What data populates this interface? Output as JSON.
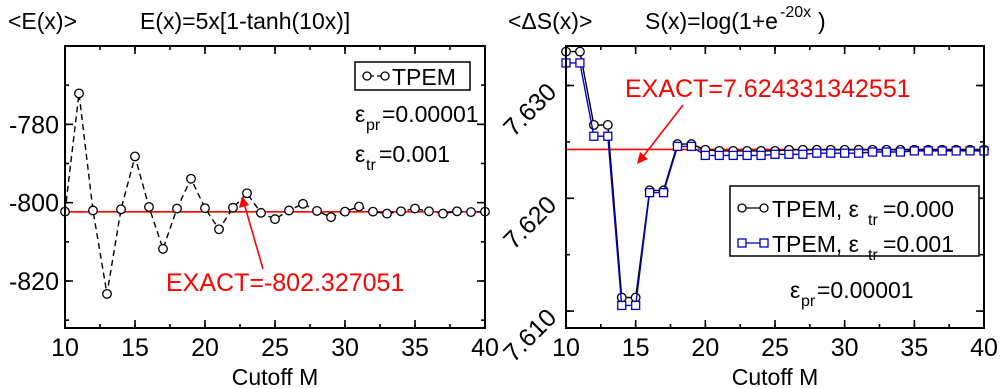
{
  "chart_data": [
    {
      "type": "line",
      "ylabel": "<E(x)>",
      "title": "E(x)=5x[1-tanh(10x)]",
      "xlabel": "Cutoff M",
      "xlim": [
        10,
        40
      ],
      "ylim": [
        -832,
        -760
      ],
      "xticks": [
        10,
        15,
        20,
        25,
        30,
        35,
        40
      ],
      "yticks": [
        -780,
        -800,
        -820
      ],
      "xtick_labels": [
        "10",
        "15",
        "20",
        "25",
        "30",
        "35",
        "40"
      ],
      "ytick_labels": [
        "-780",
        "-800",
        "-820"
      ],
      "legend_placement": "top-right",
      "series": [
        {
          "name": "TPEM",
          "marker": "circle",
          "line": "dashed",
          "color": "#000000",
          "x": [
            10,
            11,
            12,
            13,
            14,
            15,
            16,
            17,
            18,
            19,
            20,
            21,
            22,
            23,
            24,
            25,
            26,
            27,
            28,
            29,
            30,
            31,
            32,
            33,
            34,
            35,
            36,
            37,
            38,
            39,
            40
          ],
          "y": [
            -802.3,
            -772.1,
            -802.0,
            -823.3,
            -801.7,
            -788.2,
            -801.1,
            -811.8,
            -801.5,
            -793.9,
            -801.4,
            -806.8,
            -801.3,
            -797.6,
            -802.6,
            -804.2,
            -802.0,
            -800.3,
            -802.1,
            -803.7,
            -802.3,
            -801.0,
            -802.3,
            -802.8,
            -802.2,
            -801.5,
            -802.2,
            -802.8,
            -802.2,
            -802.4,
            -802.3
          ]
        }
      ],
      "reference_line": {
        "y": -802.327051,
        "color": "#ff0000"
      },
      "annotations": [
        "ε",
        "pr",
        "=0.00001",
        "ε",
        "tr",
        "=0.001",
        "EXACT=-802.327051"
      ]
    },
    {
      "type": "line",
      "ylabel": "<ΔS(x)>",
      "title_main": "S(x)=log(1+e",
      "title_sup": "-20x",
      "title_close": ")",
      "xlabel": "Cutoff M",
      "xlim": [
        10,
        40
      ],
      "ylim": [
        7.6085,
        7.6335
      ],
      "xticks": [
        10,
        15,
        20,
        25,
        30,
        35,
        40
      ],
      "yticks": [
        7.61,
        7.62,
        7.63
      ],
      "xtick_labels": [
        "10",
        "15",
        "20",
        "25",
        "30",
        "35",
        "40"
      ],
      "ytick_labels": [
        "7.610",
        "7.620",
        "7.630"
      ],
      "legend_placement": "center-right",
      "series": [
        {
          "name_main": "TPEM, ε",
          "name_sub": "tr",
          "name_tail": "=0.000",
          "marker": "circle",
          "line": "solid",
          "color": "#000000",
          "x": [
            10,
            11,
            12,
            13,
            14,
            15,
            16,
            17,
            18,
            19,
            20,
            21,
            22,
            23,
            24,
            25,
            26,
            27,
            28,
            29,
            30,
            31,
            32,
            33,
            34,
            35,
            36,
            37,
            38,
            39,
            40
          ],
          "y": [
            7.633,
            7.633,
            7.6265,
            7.6265,
            7.6112,
            7.6112,
            7.6207,
            7.6207,
            7.6248,
            7.6248,
            7.6243,
            7.6242,
            7.6242,
            7.6242,
            7.6242,
            7.6242,
            7.6243,
            7.6243,
            7.6243,
            7.6243,
            7.6243,
            7.6243,
            7.6243,
            7.6243,
            7.6243,
            7.6243,
            7.6243,
            7.6243,
            7.6243,
            7.6243,
            7.6243
          ]
        },
        {
          "name_main": "TPEM, ε",
          "name_sub": "tr",
          "name_tail": "=0.001",
          "marker": "square",
          "line": "solid",
          "color": "#0000cc",
          "x": [
            10,
            11,
            12,
            13,
            14,
            15,
            16,
            17,
            18,
            19,
            20,
            21,
            22,
            23,
            24,
            25,
            26,
            27,
            28,
            29,
            30,
            31,
            32,
            33,
            34,
            35,
            36,
            37,
            38,
            39,
            40
          ],
          "y": [
            7.632,
            7.632,
            7.6255,
            7.6255,
            7.6105,
            7.6105,
            7.6205,
            7.6205,
            7.6246,
            7.6246,
            7.6238,
            7.6238,
            7.6238,
            7.6238,
            7.6238,
            7.6239,
            7.6239,
            7.6239,
            7.624,
            7.624,
            7.624,
            7.624,
            7.6241,
            7.6241,
            7.6241,
            7.6242,
            7.6242,
            7.6242,
            7.6242,
            7.6242,
            7.6242
          ]
        }
      ],
      "reference_line": {
        "y": 7.624331342551,
        "color": "#ff0000"
      },
      "annotations": [
        "ε",
        "pr",
        "=0.00001",
        "EXACT=7.624331342551"
      ]
    }
  ]
}
